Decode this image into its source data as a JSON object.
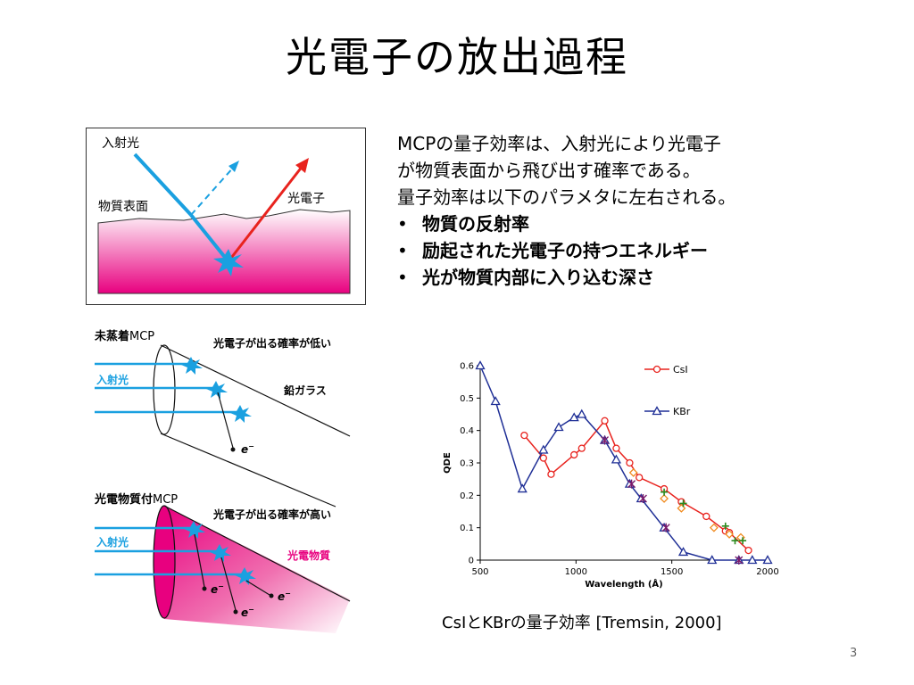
{
  "slide": {
    "title": "光電子の放出過程",
    "page_number": "3"
  },
  "text": {
    "line1": "MCPの量子効率は、入射光により光電子",
    "line2": "が物質表面から飛び出す確率である。",
    "line3": "量子効率は以下のパラメタに左右される。",
    "bullets": [
      "物質の反射率",
      "励起された光電子の持つエネルギー",
      "光が物質内部に入り込む深さ"
    ],
    "bullet_char": "•"
  },
  "diagram1": {
    "incident_label": "入射光",
    "surface_label": "物質表面",
    "photoelectron_label": "光電子"
  },
  "diagram2": {
    "top_title_bold": "未蒸着",
    "top_title_suffix": "MCP",
    "top_prob": "光電子が出る確率が低い",
    "top_incident": "入射光",
    "top_glass": "鉛ガラス",
    "electron": "e",
    "electron_sup": "−",
    "bottom_title_bold": "光電物質付",
    "bottom_title_suffix": "MCP",
    "bottom_prob": "光電子が出る確率が高い",
    "bottom_incident": "入射光",
    "bottom_material": "光電物質"
  },
  "chart_data": {
    "type": "line",
    "xlabel": "Wavelength (Å)",
    "ylabel": "QDE",
    "xlim": [
      500,
      2000
    ],
    "ylim": [
      0,
      0.6
    ],
    "x_ticks": [
      "500",
      "1000",
      "1500",
      "2000"
    ],
    "y_ticks": [
      "0",
      "0.1",
      "0.2",
      "0.3",
      "0.4",
      "0.5",
      "0.6"
    ],
    "legend_position": "top-right",
    "series": [
      {
        "name": "CsI",
        "color": "#e8231e",
        "marker": "circle",
        "points": [
          [
            730,
            0.385
          ],
          [
            830,
            0.315
          ],
          [
            870,
            0.265
          ],
          [
            990,
            0.325
          ],
          [
            1030,
            0.345
          ],
          [
            1150,
            0.43
          ],
          [
            1210,
            0.345
          ],
          [
            1280,
            0.3
          ],
          [
            1330,
            0.255
          ],
          [
            1460,
            0.22
          ],
          [
            1550,
            0.18
          ],
          [
            1680,
            0.135
          ],
          [
            1780,
            0.09
          ],
          [
            1800,
            0.085
          ],
          [
            1900,
            0.03
          ]
        ]
      },
      {
        "name": "KBr",
        "color": "#1f2f96",
        "marker": "triangle",
        "points": [
          [
            500,
            0.6
          ],
          [
            580,
            0.49
          ],
          [
            720,
            0.22
          ],
          [
            830,
            0.34
          ],
          [
            910,
            0.41
          ],
          [
            990,
            0.44
          ],
          [
            1030,
            0.45
          ],
          [
            1150,
            0.37
          ],
          [
            1210,
            0.31
          ],
          [
            1280,
            0.235
          ],
          [
            1340,
            0.19
          ],
          [
            1460,
            0.1
          ],
          [
            1560,
            0.025
          ],
          [
            1710,
            0.0
          ],
          [
            1850,
            0.0
          ],
          [
            1920,
            0.0
          ],
          [
            2000,
            0.0
          ]
        ]
      },
      {
        "name": "",
        "color": "#f08a1e",
        "marker": "diamond",
        "points": [
          [
            1300,
            0.27
          ],
          [
            1460,
            0.19
          ],
          [
            1550,
            0.16
          ],
          [
            1720,
            0.1
          ],
          [
            1800,
            0.08
          ],
          [
            1860,
            0.07
          ]
        ]
      },
      {
        "name": "",
        "color": "#2a8a1e",
        "marker": "plus",
        "points": [
          [
            1460,
            0.21
          ],
          [
            1560,
            0.175
          ],
          [
            1780,
            0.105
          ],
          [
            1830,
            0.06
          ],
          [
            1870,
            0.06
          ]
        ]
      },
      {
        "name": "",
        "color": "#7a1a6a",
        "marker": "star",
        "points": [
          [
            1150,
            0.37
          ],
          [
            1290,
            0.235
          ],
          [
            1350,
            0.19
          ],
          [
            1470,
            0.1
          ],
          [
            1850,
            0.0
          ]
        ]
      }
    ]
  },
  "caption": "CsIとKBrの量子効率 [Tremsin, 2000]"
}
